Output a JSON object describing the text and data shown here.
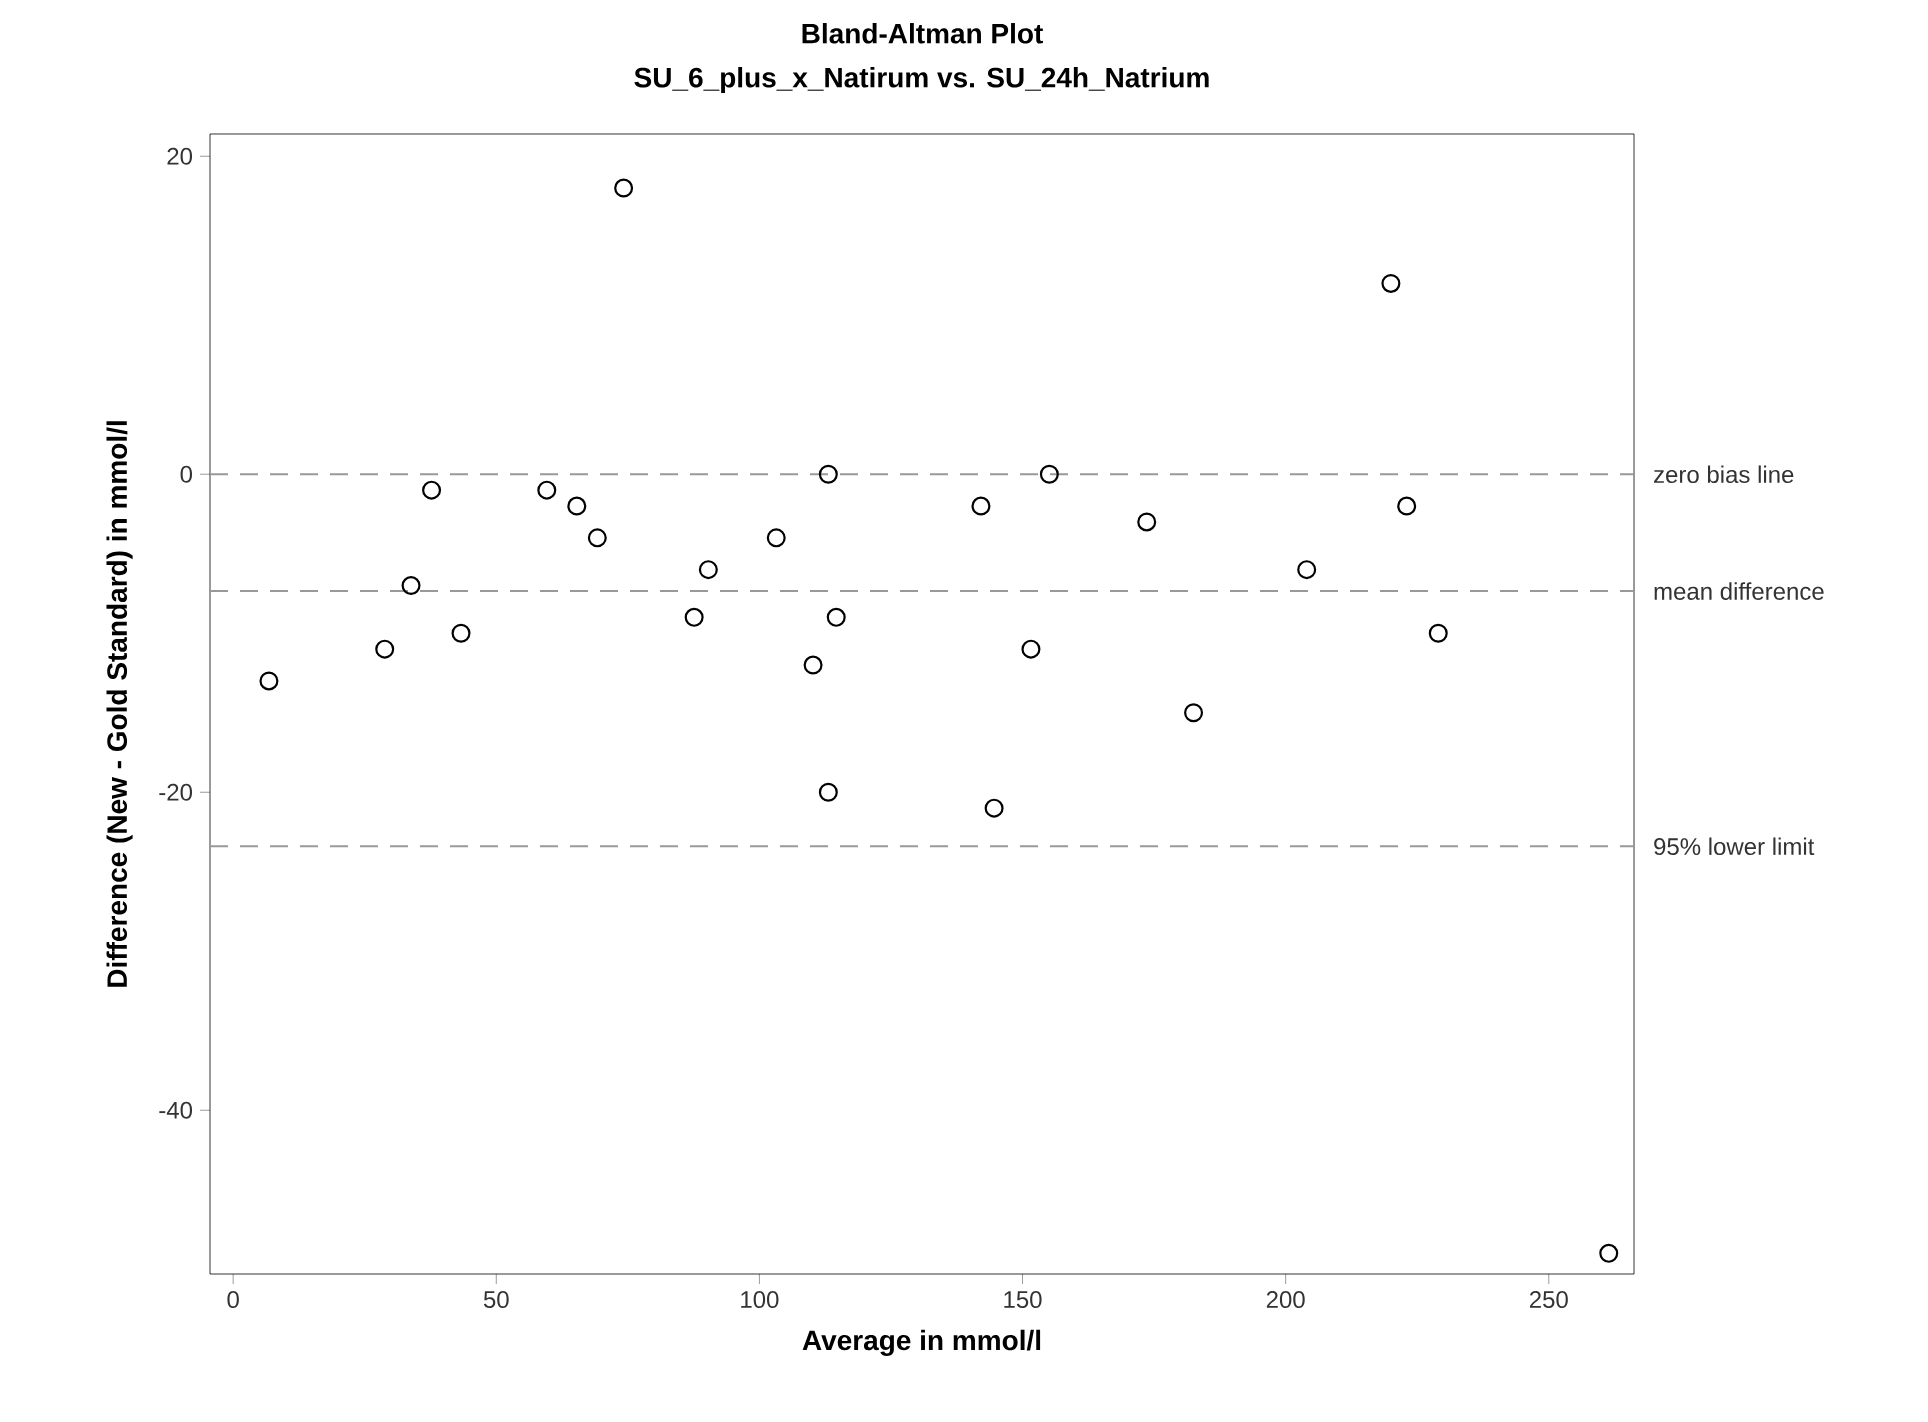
{
  "chart_data": {
    "type": "scatter",
    "title": "Bland-Altman Plot",
    "subtitle": "SU_6_plus_x_Natirum vs. SU_24h_Natrium",
    "xlabel": "Average in mmol/l",
    "ylabel": "Difference (New - Gold Standard) in mmol/l",
    "x": [
      6.8,
      28.8,
      33.8,
      37.7,
      43.3,
      59.6,
      65.3,
      69.2,
      74.2,
      87.6,
      90.3,
      103.2,
      110.2,
      113.1,
      113.1,
      114.6,
      142.1,
      144.6,
      151.6,
      155.1,
      173.6,
      182.5,
      204,
      220,
      223,
      229,
      261.4
    ],
    "values": [
      -13,
      -11,
      -7,
      -1,
      -10,
      -1,
      -2,
      -4,
      18,
      -9,
      -6,
      -4,
      -12,
      0,
      -20,
      -9,
      -2,
      -21,
      -11,
      0,
      -3,
      -15,
      -6,
      12,
      -2,
      -10,
      -49
    ],
    "color": "#000000",
    "marker": "circle",
    "xlim": [
      -4.4,
      266.2
    ],
    "ylim": [
      -50.3,
      21.4
    ],
    "xticks": [
      0,
      50,
      100,
      150,
      200,
      250
    ],
    "yticks": [
      -40,
      -20,
      0,
      20
    ],
    "ref_lines": [
      {
        "axis": "y",
        "value": 0,
        "label": "zero bias line",
        "color": "#999999",
        "line_style": "dashed"
      },
      {
        "axis": "y",
        "value": -7.35,
        "label": "mean difference",
        "color": "#999999",
        "line_style": "dashed"
      },
      {
        "axis": "y",
        "value": -23.4,
        "label": "95% lower limit",
        "color": "#999999",
        "line_style": "dashed"
      }
    ],
    "grid": false
  }
}
